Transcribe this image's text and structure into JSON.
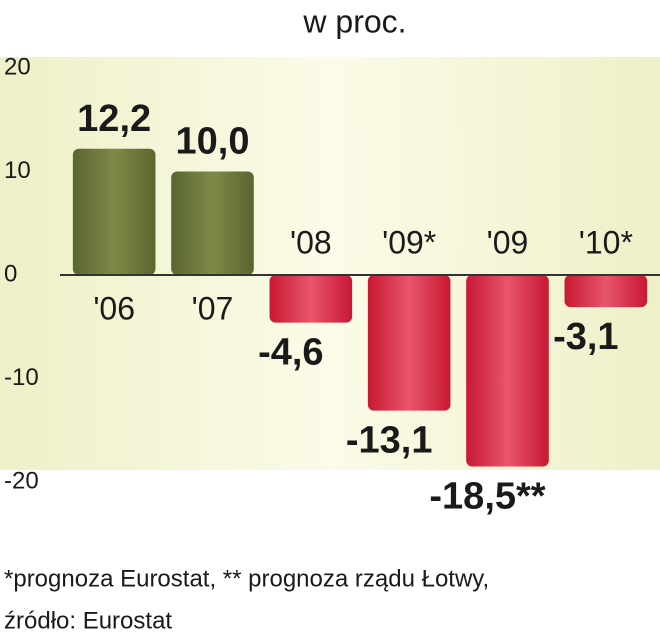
{
  "chart_data": {
    "type": "bar",
    "title": "w proc.",
    "categories": [
      "'06",
      "'07",
      "'08",
      "'09*",
      "'09",
      "'10*"
    ],
    "values": [
      12.2,
      10.0,
      -4.6,
      -13.1,
      -18.5,
      -3.1
    ],
    "value_labels": [
      "12,2",
      "10,0",
      "-4,6",
      "-13,1",
      "-18,5**",
      "-3,1"
    ],
    "positive_color": "#6e7b3c",
    "negative_color": "#d92640",
    "ylim": [
      -20,
      20
    ],
    "yticks": [
      20,
      10,
      0,
      -10,
      -20
    ],
    "footnote": [
      "*prognoza Eurostat, ** prognoza rządu Łotwy,",
      "źródło: Eurostat"
    ]
  }
}
